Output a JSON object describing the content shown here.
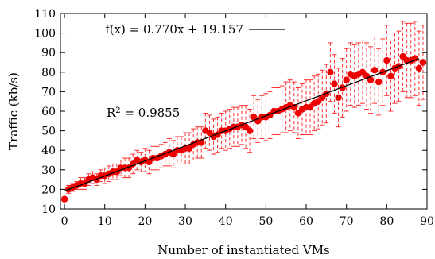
{
  "chart_data": {
    "type": "scatter",
    "xlabel": "Number of instantiated VMs",
    "ylabel": "Traffic (kb/s)",
    "xlim": [
      -1,
      90
    ],
    "ylim": [
      10,
      110
    ],
    "xticks": [
      0,
      10,
      20,
      30,
      40,
      50,
      60,
      70,
      80,
      90
    ],
    "yticks": [
      10,
      20,
      30,
      40,
      50,
      60,
      70,
      80,
      90,
      100,
      110
    ],
    "grid": false,
    "legend": "top-left",
    "colors": {
      "points": "#ee0000",
      "errorbars": "#ff3030",
      "fit": "#000000"
    },
    "fit": {
      "label": "f(x) = 0.770x + 19.157",
      "slope": 0.77,
      "intercept": 19.157,
      "r2_prefix": "R",
      "r2_sup": "2",
      "r2_value": " = 0.9855"
    },
    "series": [
      {
        "x": [
          0,
          1,
          2,
          3,
          4,
          5,
          6,
          7,
          8,
          9,
          10,
          11,
          12,
          13,
          14,
          15,
          16,
          17,
          18,
          19,
          20,
          21,
          22,
          23,
          24,
          25,
          26,
          27,
          28,
          29,
          30,
          31,
          32,
          33,
          34,
          35,
          36,
          37,
          38,
          39,
          40,
          41,
          42,
          43,
          44,
          45,
          46,
          47,
          48,
          49,
          50,
          51,
          52,
          53,
          54,
          55,
          56,
          57,
          58,
          59,
          60,
          61,
          62,
          63,
          64,
          65,
          66,
          67,
          68,
          69,
          70,
          71,
          72,
          73,
          74,
          75,
          76,
          77,
          78,
          79,
          80,
          81,
          82,
          83,
          84,
          85,
          86,
          87,
          88,
          89
        ],
        "y": [
          15,
          20,
          21,
          22,
          23,
          23,
          25,
          26,
          25,
          27,
          27,
          28,
          29,
          29,
          31,
          31,
          31,
          33,
          35,
          34,
          35,
          34,
          36,
          36,
          37,
          38,
          39,
          38,
          40,
          40,
          41,
          41,
          43,
          44,
          44,
          50,
          49,
          47,
          48,
          50,
          50,
          51,
          52,
          52,
          53,
          52,
          50,
          57,
          55,
          57,
          57,
          58,
          60,
          60,
          61,
          62,
          63,
          62,
          59,
          61,
          62,
          62,
          64,
          65,
          67,
          69,
          80,
          74,
          67,
          72,
          76,
          79,
          78,
          79,
          80,
          78,
          76,
          81,
          75,
          80,
          86,
          78,
          82,
          83,
          88,
          86,
          86,
          87,
          82,
          85
        ],
        "err": [
          1,
          2,
          2,
          2,
          3,
          3,
          3,
          3,
          3,
          3,
          4,
          4,
          4,
          4,
          4,
          5,
          5,
          5,
          5,
          5,
          6,
          6,
          6,
          6,
          6,
          6,
          7,
          7,
          7,
          7,
          8,
          8,
          8,
          8,
          8,
          9,
          9,
          9,
          9,
          9,
          10,
          10,
          10,
          10,
          10,
          11,
          11,
          11,
          11,
          11,
          12,
          12,
          12,
          12,
          12,
          13,
          13,
          13,
          13,
          13,
          14,
          14,
          14,
          14,
          14,
          15,
          15,
          15,
          15,
          15,
          16,
          16,
          16,
          16,
          16,
          17,
          17,
          17,
          17,
          17,
          18,
          18,
          18,
          18,
          18,
          19,
          19,
          19,
          19,
          19
        ]
      }
    ]
  }
}
